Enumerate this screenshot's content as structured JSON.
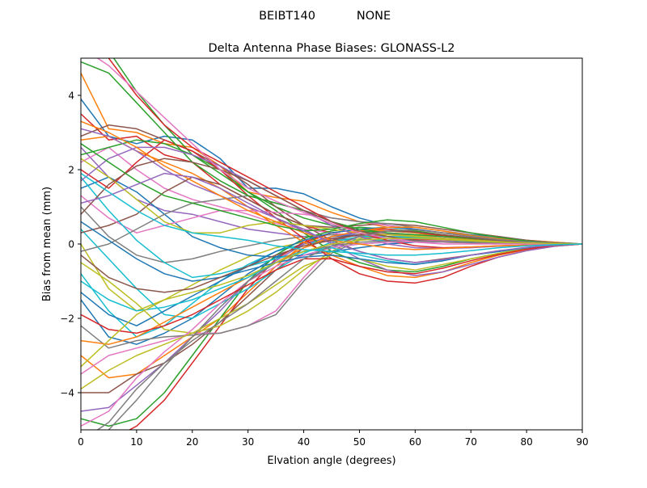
{
  "chart_data": {
    "type": "line",
    "suptitle_left": "BEIBT140",
    "suptitle_right": "NONE",
    "title": "Delta Antenna Phase Biases: GLONASS-L2",
    "xlabel": "Elvation angle (degrees)",
    "ylabel": "Bias from mean (mm)",
    "xlim": [
      0,
      90
    ],
    "ylim": [
      -5,
      5
    ],
    "xticks": [
      0,
      10,
      20,
      30,
      40,
      50,
      60,
      70,
      80,
      90
    ],
    "xtick_labels": [
      "0",
      "10",
      "20",
      "30",
      "40",
      "50",
      "60",
      "70",
      "80",
      "90"
    ],
    "yticks": [
      -4,
      -2,
      0,
      2,
      4
    ],
    "ytick_labels": [
      "−4",
      "−2",
      "0",
      "2",
      "4"
    ],
    "grid": false,
    "x": [
      0,
      5,
      10,
      15,
      20,
      25,
      30,
      35,
      40,
      45,
      50,
      55,
      60,
      65,
      70,
      75,
      80,
      85,
      90
    ],
    "colors": [
      "#1f77b4",
      "#ff7f0e",
      "#2ca02c",
      "#d62728",
      "#9467bd",
      "#8c564b",
      "#e377c2",
      "#7f7f7f",
      "#bcbd22",
      "#17becf"
    ],
    "series": [
      {
        "values": [
          3.9,
          2.9,
          2.7,
          2.9,
          2.8,
          2.3,
          1.5,
          1.5,
          1.35,
          1.0,
          0.7,
          0.5,
          0.4,
          0.3,
          0.25,
          0.2,
          0.1,
          0.05,
          0.0
        ]
      },
      {
        "values": [
          4.6,
          3.1,
          3.0,
          2.7,
          2.6,
          2.1,
          1.4,
          1.25,
          1.15,
          0.85,
          0.6,
          0.45,
          0.4,
          0.3,
          0.22,
          0.15,
          0.1,
          0.05,
          0.0
        ]
      },
      {
        "values": [
          5.5,
          5.2,
          4.1,
          3.2,
          2.4,
          2.0,
          1.4,
          1.0,
          0.7,
          0.5,
          0.35,
          0.3,
          0.25,
          0.2,
          0.15,
          0.1,
          0.08,
          0.03,
          0.0
        ]
      },
      {
        "values": [
          3.5,
          2.8,
          2.9,
          2.4,
          2.2,
          1.6,
          1.2,
          0.8,
          0.5,
          0.3,
          0.2,
          0.15,
          0.12,
          0.1,
          0.08,
          0.05,
          0.03,
          0.01,
          0.0
        ]
      },
      {
        "values": [
          2.6,
          1.8,
          1.2,
          0.9,
          0.8,
          0.6,
          0.4,
          0.3,
          0.2,
          0.15,
          0.12,
          0.1,
          0.08,
          0.06,
          0.05,
          0.03,
          0.02,
          0.01,
          0.0
        ]
      },
      {
        "values": [
          2.9,
          3.2,
          3.1,
          2.8,
          2.5,
          2.1,
          1.6,
          1.0,
          0.5,
          0.1,
          -0.2,
          -0.4,
          -0.5,
          -0.4,
          -0.3,
          -0.2,
          -0.1,
          -0.05,
          0.0
        ]
      },
      {
        "values": [
          2.2,
          2.6,
          2.0,
          1.5,
          1.2,
          1.0,
          0.8,
          0.55,
          0.4,
          0.3,
          0.2,
          0.15,
          0.1,
          0.08,
          0.05,
          0.03,
          0.02,
          0.01,
          0.0
        ]
      },
      {
        "values": [
          1.0,
          0.2,
          -0.3,
          -0.5,
          -0.4,
          -0.2,
          -0.05,
          0.1,
          0.2,
          0.25,
          0.22,
          0.2,
          0.15,
          0.12,
          0.08,
          0.05,
          0.03,
          0.01,
          0.0
        ]
      },
      {
        "values": [
          0.0,
          -1.2,
          -1.8,
          -1.5,
          -1.1,
          -0.7,
          -0.35,
          -0.1,
          0.05,
          0.1,
          0.12,
          0.1,
          0.08,
          0.06,
          0.05,
          0.03,
          0.02,
          0.01,
          0.0
        ]
      },
      {
        "values": [
          -0.8,
          -1.8,
          -2.5,
          -2.2,
          -1.6,
          -1.0,
          -0.55,
          -0.2,
          0.0,
          0.1,
          0.12,
          0.1,
          0.08,
          0.06,
          0.05,
          0.03,
          0.02,
          0.01,
          0.0
        ]
      },
      {
        "values": [
          -1.5,
          -2.5,
          -2.7,
          -2.4,
          -2.0,
          -1.4,
          -0.8,
          -0.35,
          0.0,
          0.2,
          0.25,
          0.2,
          0.15,
          0.12,
          0.08,
          0.05,
          0.03,
          0.01,
          0.0
        ]
      },
      {
        "values": [
          -3.0,
          -3.6,
          -3.5,
          -3.0,
          -2.5,
          -2.0,
          -1.3,
          -0.6,
          0.0,
          0.3,
          0.4,
          0.35,
          0.3,
          0.2,
          0.12,
          0.08,
          0.05,
          0.02,
          0.0
        ]
      },
      {
        "values": [
          -4.7,
          -4.9,
          -4.7,
          -4.0,
          -3.0,
          -2.0,
          -1.0,
          -0.3,
          0.15,
          0.35,
          0.45,
          0.4,
          0.35,
          0.25,
          0.15,
          0.1,
          0.05,
          0.02,
          0.0
        ]
      },
      {
        "values": [
          -5.2,
          -5.3,
          -4.9,
          -4.2,
          -3.2,
          -2.2,
          -1.2,
          -0.4,
          0.05,
          0.3,
          0.4,
          0.4,
          0.32,
          0.22,
          0.15,
          0.1,
          0.05,
          0.02,
          0.0
        ]
      },
      {
        "values": [
          -4.5,
          -4.4,
          -3.8,
          -3.2,
          -2.5,
          -1.8,
          -1.0,
          -0.45,
          0.0,
          0.2,
          0.3,
          0.28,
          0.22,
          0.16,
          0.1,
          0.07,
          0.04,
          0.02,
          0.0
        ]
      },
      {
        "values": [
          -4.0,
          -4.0,
          -3.5,
          -3.2,
          -2.7,
          -2.1,
          -1.4,
          -0.7,
          -0.1,
          0.15,
          0.25,
          0.2,
          0.18,
          0.12,
          0.08,
          0.05,
          0.03,
          0.01,
          0.0
        ]
      },
      {
        "values": [
          -3.5,
          -3.0,
          -2.8,
          -2.6,
          -2.4,
          -2.4,
          -2.2,
          -1.8,
          -0.9,
          -0.1,
          0.2,
          0.3,
          0.25,
          0.15,
          0.1,
          0.06,
          0.04,
          0.02,
          0.0
        ]
      },
      {
        "values": [
          -2.2,
          -2.8,
          -2.6,
          -2.5,
          -2.45,
          -2.4,
          -2.2,
          -1.9,
          -1.0,
          -0.25,
          0.1,
          0.25,
          0.2,
          0.15,
          0.1,
          0.06,
          0.04,
          0.02,
          0.0
        ]
      },
      {
        "values": [
          -0.5,
          -1.0,
          -1.6,
          -2.3,
          -2.4,
          -2.2,
          -1.8,
          -1.3,
          -0.7,
          -0.2,
          0.15,
          0.25,
          0.22,
          0.15,
          0.1,
          0.06,
          0.04,
          0.02,
          0.0
        ]
      },
      {
        "values": [
          0.4,
          -0.4,
          -1.2,
          -1.9,
          -2.0,
          -1.6,
          -1.2,
          -0.7,
          -0.25,
          0.05,
          0.2,
          0.2,
          0.18,
          0.12,
          0.08,
          0.05,
          0.03,
          0.01,
          0.0
        ]
      },
      {
        "values": [
          1.5,
          1.8,
          1.4,
          0.8,
          0.2,
          -0.1,
          -0.3,
          -0.35,
          -0.3,
          -0.2,
          -0.1,
          0.0,
          0.05,
          0.06,
          0.05,
          0.03,
          0.02,
          0.01,
          0.0
        ]
      },
      {
        "values": [
          2.8,
          2.9,
          2.5,
          2.2,
          1.9,
          1.5,
          1.0,
          0.5,
          0.05,
          -0.3,
          -0.6,
          -0.85,
          -0.9,
          -0.75,
          -0.5,
          -0.3,
          -0.15,
          -0.05,
          0.0
        ]
      },
      {
        "values": [
          2.4,
          2.6,
          2.8,
          2.7,
          2.4,
          1.9,
          1.4,
          0.9,
          0.3,
          -0.2,
          -0.5,
          -0.7,
          -0.75,
          -0.6,
          -0.4,
          -0.25,
          -0.12,
          -0.05,
          0.0
        ]
      },
      {
        "values": [
          2.0,
          1.5,
          2.2,
          2.8,
          2.5,
          2.0,
          1.3,
          0.7,
          0.15,
          -0.4,
          -0.8,
          -1.0,
          -1.05,
          -0.9,
          -0.6,
          -0.35,
          -0.18,
          -0.06,
          0.0
        ]
      },
      {
        "values": [
          3.1,
          2.9,
          2.5,
          2.0,
          1.6,
          1.3,
          1.0,
          0.7,
          0.4,
          0.0,
          -0.4,
          -0.7,
          -0.85,
          -0.75,
          -0.55,
          -0.35,
          -0.18,
          -0.06,
          0.0
        ]
      },
      {
        "values": [
          0.3,
          0.5,
          0.8,
          1.4,
          1.8,
          1.6,
          1.2,
          0.8,
          0.5,
          0.45,
          0.5,
          0.55,
          0.5,
          0.4,
          0.3,
          0.2,
          0.1,
          0.03,
          0.0
        ]
      },
      {
        "values": [
          1.3,
          0.7,
          0.3,
          0.5,
          0.7,
          0.9,
          0.9,
          0.85,
          0.8,
          0.7,
          0.6,
          0.5,
          0.4,
          0.3,
          0.2,
          0.12,
          0.06,
          0.02,
          0.0
        ]
      },
      {
        "values": [
          -0.2,
          0.0,
          0.4,
          0.8,
          1.1,
          1.2,
          1.3,
          1.1,
          0.9,
          0.7,
          0.6,
          0.55,
          0.45,
          0.35,
          0.25,
          0.15,
          0.08,
          0.03,
          0.0
        ]
      },
      {
        "values": [
          2.3,
          1.8,
          1.2,
          0.6,
          0.3,
          0.3,
          0.5,
          0.6,
          0.5,
          0.4,
          0.3,
          0.25,
          0.2,
          0.15,
          0.1,
          0.06,
          0.03,
          0.01,
          0.0
        ]
      },
      {
        "values": [
          1.8,
          0.9,
          0.1,
          -0.5,
          -0.9,
          -0.8,
          -0.6,
          -0.4,
          -0.2,
          -0.1,
          0.0,
          0.05,
          0.06,
          0.05,
          0.04,
          0.03,
          0.02,
          0.01,
          0.0
        ]
      },
      {
        "values": [
          -1.3,
          -1.9,
          -2.2,
          -1.8,
          -1.4,
          -1.0,
          -0.6,
          -0.2,
          0.1,
          0.3,
          0.4,
          0.45,
          0.4,
          0.3,
          0.2,
          0.12,
          0.06,
          0.02,
          0.0
        ]
      },
      {
        "values": [
          -2.6,
          -2.7,
          -2.5,
          -2.1,
          -1.7,
          -1.3,
          -0.9,
          -0.5,
          -0.1,
          0.2,
          0.35,
          0.45,
          0.45,
          0.35,
          0.22,
          0.14,
          0.07,
          0.02,
          0.0
        ]
      },
      {
        "values": [
          4.9,
          4.6,
          3.8,
          3.0,
          2.2,
          1.7,
          1.3,
          1.1,
          0.9,
          0.6,
          0.4,
          0.3,
          0.25,
          0.2,
          0.15,
          0.1,
          0.06,
          0.02,
          0.0
        ]
      },
      {
        "values": [
          5.4,
          5.0,
          4.0,
          3.2,
          2.6,
          2.2,
          1.8,
          1.4,
          1.0,
          0.6,
          0.3,
          0.1,
          -0.05,
          -0.1,
          -0.08,
          -0.05,
          -0.03,
          -0.01,
          0.0
        ]
      },
      {
        "values": [
          1.7,
          2.3,
          2.6,
          2.6,
          2.4,
          2.1,
          1.7,
          1.3,
          0.9,
          0.5,
          0.2,
          0.0,
          -0.1,
          -0.12,
          -0.1,
          -0.06,
          -0.03,
          -0.01,
          0.0
        ]
      },
      {
        "values": [
          0.8,
          1.6,
          2.1,
          2.3,
          2.2,
          2.0,
          1.7,
          1.3,
          0.9,
          0.6,
          0.35,
          0.2,
          0.1,
          0.05,
          0.03,
          0.02,
          0.01,
          0.0,
          0.0
        ]
      },
      {
        "values": [
          -4.9,
          -4.5,
          -3.6,
          -2.9,
          -2.3,
          -1.6,
          -1.0,
          -0.6,
          -0.3,
          -0.1,
          0.0,
          0.05,
          0.06,
          0.05,
          0.04,
          0.03,
          0.02,
          0.01,
          0.0
        ]
      },
      {
        "values": [
          -5.5,
          -5.0,
          -4.2,
          -3.3,
          -2.5,
          -1.7,
          -1.0,
          -0.5,
          -0.2,
          -0.05,
          0.05,
          0.08,
          0.08,
          0.06,
          0.04,
          0.03,
          0.02,
          0.01,
          0.0
        ]
      },
      {
        "values": [
          -3.9,
          -3.4,
          -3.0,
          -2.7,
          -2.4,
          -2.0,
          -1.6,
          -1.1,
          -0.6,
          -0.3,
          -0.4,
          -0.6,
          -0.7,
          -0.55,
          -0.4,
          -0.25,
          -0.12,
          -0.04,
          0.0
        ]
      },
      {
        "values": [
          -1.0,
          -1.5,
          -1.8,
          -1.7,
          -1.5,
          -1.2,
          -0.9,
          -0.5,
          -0.2,
          -0.1,
          -0.3,
          -0.45,
          -0.55,
          -0.45,
          -0.3,
          -0.2,
          -0.1,
          -0.03,
          0.0
        ]
      },
      {
        "values": [
          0.6,
          0.1,
          -0.4,
          -0.8,
          -1.0,
          -0.9,
          -0.7,
          -0.5,
          -0.35,
          -0.3,
          -0.4,
          -0.5,
          -0.55,
          -0.45,
          -0.3,
          -0.2,
          -0.1,
          -0.03,
          0.0
        ]
      },
      {
        "values": [
          3.3,
          3.0,
          2.6,
          2.1,
          1.7,
          1.3,
          0.9,
          0.6,
          0.3,
          0.1,
          0.0,
          -0.1,
          -0.15,
          -0.12,
          -0.08,
          -0.05,
          -0.03,
          -0.01,
          0.0
        ]
      },
      {
        "values": [
          2.7,
          2.2,
          1.7,
          1.3,
          1.1,
          0.9,
          0.7,
          0.5,
          0.35,
          0.4,
          0.55,
          0.65,
          0.6,
          0.45,
          0.3,
          0.18,
          0.08,
          0.02,
          0.0
        ]
      },
      {
        "values": [
          -1.9,
          -2.3,
          -2.4,
          -2.2,
          -1.9,
          -1.5,
          -1.1,
          -0.7,
          -0.4,
          -0.4,
          -0.6,
          -0.75,
          -0.8,
          -0.65,
          -0.45,
          -0.28,
          -0.14,
          -0.04,
          0.0
        ]
      },
      {
        "values": [
          1.1,
          1.3,
          1.6,
          1.9,
          1.8,
          1.5,
          1.1,
          0.7,
          0.35,
          0.05,
          -0.2,
          -0.4,
          -0.5,
          -0.42,
          -0.3,
          -0.18,
          -0.09,
          -0.03,
          0.0
        ]
      },
      {
        "values": [
          -0.3,
          -0.9,
          -1.2,
          -1.3,
          -1.2,
          -0.9,
          -0.6,
          -0.3,
          -0.05,
          0.1,
          0.25,
          0.35,
          0.32,
          0.25,
          0.17,
          0.1,
          0.05,
          0.02,
          0.0
        ]
      },
      {
        "values": [
          5.3,
          4.8,
          4.1,
          3.4,
          2.7,
          2.0,
          1.5,
          1.15,
          0.85,
          0.55,
          0.3,
          0.15,
          0.05,
          0.0,
          0.0,
          0.0,
          0.0,
          0.0,
          0.0
        ]
      },
      {
        "values": [
          -5.3,
          -4.8,
          -3.9,
          -3.2,
          -2.6,
          -2.1,
          -1.6,
          -1.0,
          -0.4,
          -0.05,
          0.2,
          0.35,
          0.38,
          0.3,
          0.2,
          0.12,
          0.06,
          0.02,
          0.0
        ]
      },
      {
        "values": [
          -3.3,
          -2.6,
          -1.9,
          -1.5,
          -1.3,
          -1.1,
          -0.85,
          -0.5,
          -0.2,
          0.0,
          0.1,
          0.15,
          0.15,
          0.12,
          0.08,
          0.05,
          0.03,
          0.01,
          0.0
        ]
      },
      {
        "values": [
          1.9,
          1.4,
          0.9,
          0.5,
          0.3,
          0.2,
          0.1,
          -0.05,
          -0.15,
          -0.2,
          -0.25,
          -0.3,
          -0.3,
          -0.25,
          -0.18,
          -0.1,
          -0.05,
          -0.02,
          0.0
        ]
      }
    ]
  }
}
